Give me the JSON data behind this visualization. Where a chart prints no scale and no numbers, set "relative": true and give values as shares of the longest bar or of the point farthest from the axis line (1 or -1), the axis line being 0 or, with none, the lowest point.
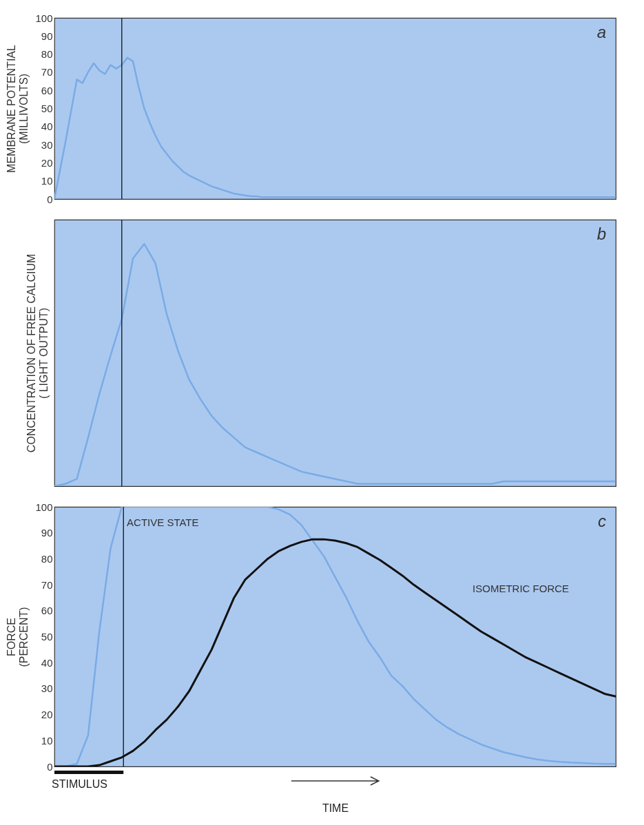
{
  "chart_data": [
    {
      "type": "line",
      "ylabel": "MEMBRANE POTENTIAL\n(MILLIVOLTS)",
      "ylim": [
        0,
        100
      ],
      "yticks": [
        0,
        10,
        20,
        30,
        40,
        50,
        60,
        70,
        80,
        90,
        100
      ],
      "tick_labels": "y",
      "annotations": [
        "a"
      ],
      "line_style": "solid",
      "categories": [
        null,
        null,
        null,
        null,
        null,
        null,
        null,
        null,
        null,
        null,
        null,
        null,
        null,
        null,
        null,
        null,
        null,
        null,
        null,
        null,
        null,
        null,
        null,
        null,
        null,
        null,
        null,
        null,
        null,
        null,
        null,
        null,
        null,
        null,
        null,
        null,
        null,
        null,
        null,
        null,
        null,
        null,
        null,
        null,
        null,
        null,
        null,
        null,
        null,
        null,
        null,
        null,
        null,
        null,
        null,
        null,
        null,
        null,
        null,
        null,
        null,
        null,
        null,
        null,
        null,
        null,
        null,
        null,
        null,
        null,
        null,
        null,
        null,
        null,
        null,
        null,
        null,
        null,
        null,
        null,
        null,
        null,
        null,
        null,
        null,
        null,
        null,
        null,
        null,
        null,
        null,
        null,
        null,
        null,
        null,
        null,
        null,
        null,
        null,
        null,
        null
      ],
      "series": [
        {
          "color": "#7aabe6",
          "values": [
            0,
            16,
            32,
            49,
            66,
            64,
            70,
            75,
            71,
            69,
            74,
            72,
            74,
            78,
            76,
            62,
            50,
            42,
            35,
            29,
            25,
            21,
            18,
            15,
            13,
            11.5,
            10,
            8.5,
            7,
            6,
            5,
            4,
            3,
            2.5,
            2,
            1.5,
            1.5,
            1,
            1,
            1,
            1,
            1,
            1,
            1,
            1,
            1,
            1,
            1,
            1,
            1,
            1,
            1,
            1,
            1,
            1,
            1,
            1,
            1,
            1,
            1,
            1,
            1,
            1,
            1,
            1,
            1,
            1,
            1,
            1,
            1,
            1,
            1,
            1,
            1,
            1,
            1,
            1,
            1,
            1,
            1,
            1,
            1,
            1,
            1,
            1,
            1,
            1,
            1,
            1,
            1,
            1,
            1,
            1,
            1,
            1,
            1,
            1,
            1,
            1,
            1,
            1
          ]
        }
      ]
    },
    {
      "type": "line",
      "relative": true,
      "ylabel": "CONCENTRATION OF FREE CALCIUM\n( LIGHT OUTPUT)",
      "tick_labels": false,
      "annotations": [
        "b"
      ],
      "line_style": "solid",
      "categories": [
        null,
        null,
        null,
        null,
        null,
        null,
        null,
        null,
        null,
        null,
        null,
        null,
        null,
        null,
        null,
        null,
        null,
        null,
        null,
        null,
        null,
        null,
        null,
        null,
        null,
        null,
        null,
        null,
        null,
        null,
        null,
        null,
        null,
        null,
        null,
        null,
        null,
        null,
        null,
        null,
        null,
        null,
        null,
        null,
        null,
        null,
        null,
        null,
        null,
        null,
        null
      ],
      "series": [
        {
          "color": "#7aabe6",
          "values": [
            0,
            0.01,
            0.03,
            0.2,
            0.38,
            0.54,
            0.69,
            0.94,
            1,
            0.92,
            0.71,
            0.56,
            0.44,
            0.36,
            0.29,
            0.24,
            0.2,
            0.16,
            0.14,
            0.12,
            0.1,
            0.08,
            0.06,
            0.05,
            0.04,
            0.03,
            0.02,
            0.01,
            0.01,
            0.01,
            0.01,
            0.01,
            0.01,
            0.01,
            0.01,
            0.01,
            0.01,
            0.01,
            0.01,
            0.01,
            0.02,
            0.02,
            0.02,
            0.02,
            0.02,
            0.02,
            0.02,
            0.02,
            0.02,
            0.02,
            0.02
          ]
        }
      ]
    },
    {
      "type": "line",
      "ylabel": "FORCE\n(PERCENT)",
      "xlabel": "TIME",
      "ylim": [
        0,
        100
      ],
      "yticks": [
        0,
        10,
        20,
        30,
        40,
        50,
        60,
        70,
        80,
        90,
        100
      ],
      "tick_labels": "y",
      "annotations": [
        "c",
        "STIMULUS"
      ],
      "line_style": "solid",
      "categories": [
        null,
        null,
        null,
        null,
        null,
        null,
        null,
        null,
        null,
        null,
        null,
        null,
        null,
        null,
        null,
        null,
        null,
        null,
        null,
        null,
        null,
        null,
        null,
        null,
        null,
        null,
        null,
        null,
        null,
        null,
        null,
        null,
        null,
        null,
        null,
        null,
        null,
        null,
        null,
        null,
        null,
        null,
        null,
        null,
        null,
        null,
        null,
        null,
        null,
        null,
        null
      ],
      "series": [
        {
          "name": "ACTIVE STATE",
          "color": "#7aabe6",
          "values": [
            0,
            0,
            1,
            12,
            52,
            84,
            100,
            100,
            100,
            100,
            100,
            100,
            100,
            100,
            100,
            100,
            100,
            100,
            100,
            100,
            99,
            97,
            93,
            87,
            81,
            73,
            65,
            56,
            48,
            42,
            35,
            31,
            26,
            22,
            18,
            15,
            12.5,
            10.5,
            8.5,
            7,
            5.5,
            4.5,
            3.5,
            2.7,
            2.2,
            1.8,
            1.5,
            1.3,
            1.1,
            1,
            1
          ]
        },
        {
          "name": "ISOMETRIC FORCE",
          "color": "#111111",
          "values": [
            0,
            0,
            0,
            0,
            0.5,
            2,
            3.5,
            6,
            9.5,
            14,
            18,
            23,
            29,
            37,
            45,
            55,
            65,
            72,
            76,
            80,
            83,
            85,
            86.5,
            87.5,
            87.5,
            87,
            86,
            84.5,
            82,
            79.5,
            76.5,
            73.5,
            70,
            67,
            64,
            61,
            58,
            55,
            52,
            49.5,
            47,
            44.5,
            42,
            40,
            38,
            36,
            34,
            32,
            30,
            28,
            27
          ]
        }
      ]
    }
  ]
}
